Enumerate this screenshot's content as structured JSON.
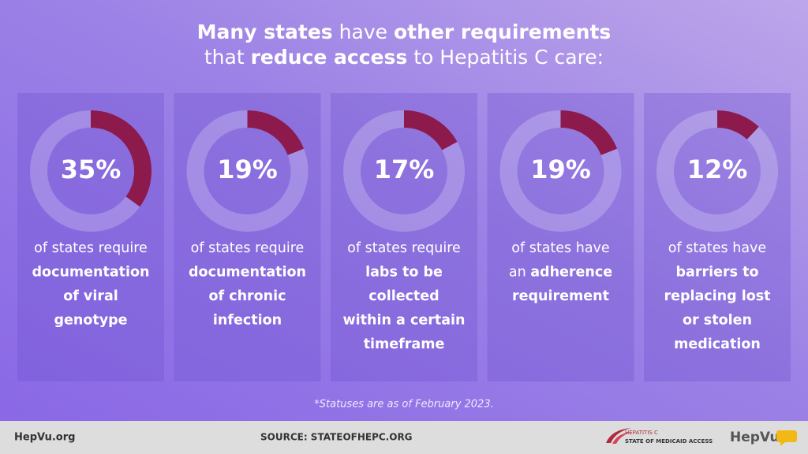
{
  "title": {
    "lines": [
      [
        {
          "text": "Many states",
          "bold": true
        },
        {
          "text": " have ",
          "bold": false
        },
        {
          "text": "other requirements",
          "bold": true
        }
      ],
      [
        {
          "text": "that ",
          "bold": false
        },
        {
          "text": "reduce access",
          "bold": true
        },
        {
          "text": " to Hepatitis C care:",
          "bold": false
        }
      ]
    ]
  },
  "cards": [
    {
      "value": 35,
      "value_label": "35%",
      "lines": [
        [
          {
            "text": "of states require",
            "bold": false
          }
        ],
        [
          {
            "text": "documentation",
            "bold": true
          }
        ],
        [
          {
            "text": "of viral",
            "bold": true
          }
        ],
        [
          {
            "text": "genotype",
            "bold": true
          }
        ]
      ]
    },
    {
      "value": 19,
      "value_label": "19%",
      "lines": [
        [
          {
            "text": "of states require",
            "bold": false
          }
        ],
        [
          {
            "text": "documentation",
            "bold": true
          }
        ],
        [
          {
            "text": "of chronic",
            "bold": true
          }
        ],
        [
          {
            "text": "infection",
            "bold": true
          }
        ]
      ]
    },
    {
      "value": 17,
      "value_label": "17%",
      "lines": [
        [
          {
            "text": "of states require",
            "bold": false
          }
        ],
        [
          {
            "text": "labs to be",
            "bold": true
          }
        ],
        [
          {
            "text": "collected",
            "bold": true
          }
        ],
        [
          {
            "text": "within a certain",
            "bold": true
          }
        ],
        [
          {
            "text": "timeframe",
            "bold": true
          }
        ]
      ]
    },
    {
      "value": 19,
      "value_label": "19%",
      "lines": [
        [
          {
            "text": "of states have",
            "bold": false
          }
        ],
        [
          {
            "text": "an ",
            "bold": false
          },
          {
            "text": "adherence",
            "bold": true
          }
        ],
        [
          {
            "text": "requirement",
            "bold": true
          }
        ]
      ]
    },
    {
      "value": 12,
      "value_label": "12%",
      "lines": [
        [
          {
            "text": "of states have",
            "bold": false
          }
        ],
        [
          {
            "text": "barriers to",
            "bold": true
          }
        ],
        [
          {
            "text": "replacing lost",
            "bold": true
          }
        ],
        [
          {
            "text": "or stolen",
            "bold": true
          }
        ],
        [
          {
            "text": "medication",
            "bold": true
          }
        ]
      ]
    }
  ],
  "footnote": "*Statuses are as of February 2023.",
  "footer": {
    "site": "HepVu.org",
    "source": "SOURCE: STATEOFHEPC.ORG",
    "logo_top": "HEPATITIS C",
    "logo_bottom": "STATE OF MEDICAID ACCESS",
    "brand": "HepVu"
  }
}
